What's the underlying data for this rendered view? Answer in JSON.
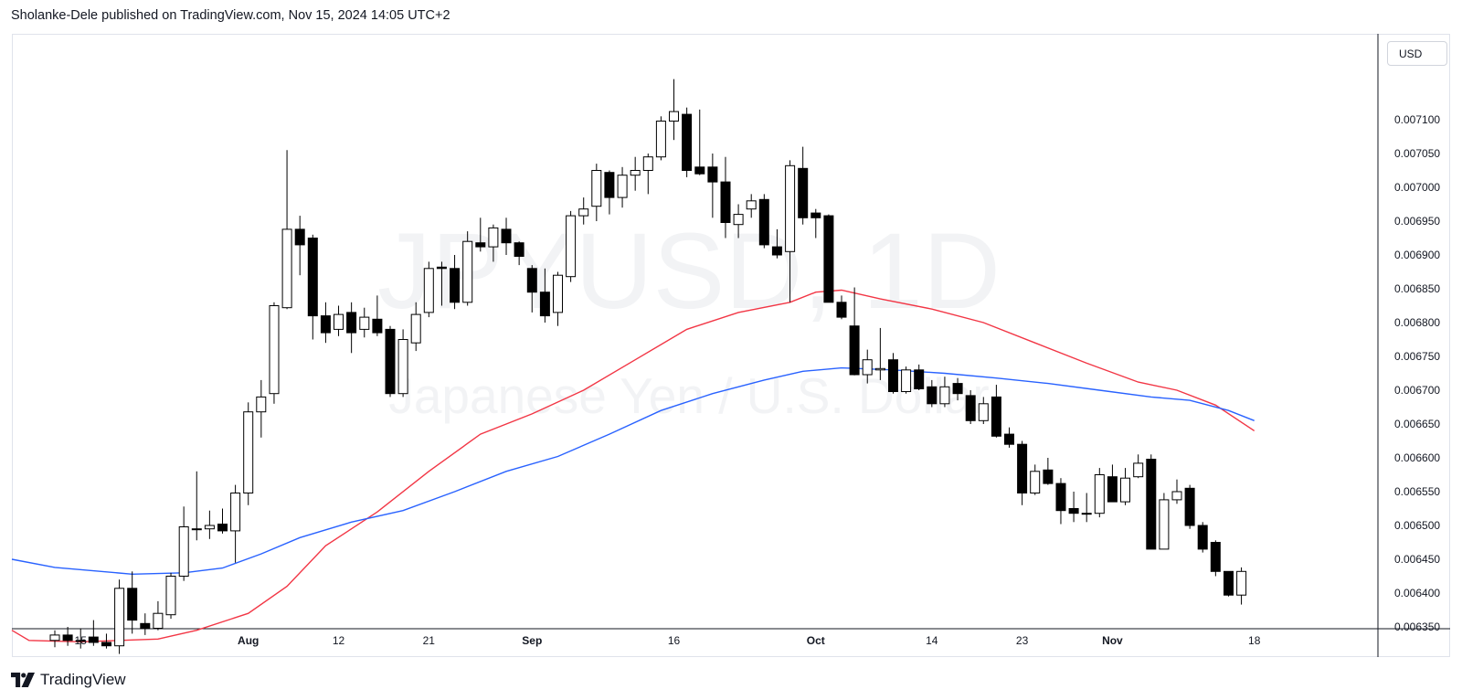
{
  "header": {
    "published_line": "Sholanke-Dele published on TradingView.com, Nov 15, 2024 14:05 UTC+2"
  },
  "price_scale": {
    "currency_button": "USD"
  },
  "watermark": {
    "symbol": "JPYUSD, 1D",
    "description": "Japanese Yen / U.S. Dollar"
  },
  "footer": {
    "brand": "TradingView"
  },
  "colors": {
    "up_candle_body": "#ffffff",
    "down_candle_body": "#000000",
    "candle_outline": "#000000",
    "ma_fast": "#f23645",
    "ma_slow": "#2962ff",
    "watermark": "#f2f3f5"
  },
  "chart_data": {
    "type": "candlestick",
    "symbol": "JPYUSD",
    "timeframe": "1D",
    "y_ticks": [
      "0.006350",
      "0.006400",
      "0.006450",
      "0.006500",
      "0.006550",
      "0.006600",
      "0.006650",
      "0.006700",
      "0.006750",
      "0.006800",
      "0.006850",
      "0.006900",
      "0.006950",
      "0.007000",
      "0.007050",
      "0.007100"
    ],
    "ylim": [
      0.00632,
      0.00714
    ],
    "x_ticks": [
      {
        "label": "15",
        "index": 2,
        "bold": false
      },
      {
        "label": "Aug",
        "index": 15,
        "bold": true
      },
      {
        "label": "12",
        "index": 22,
        "bold": false
      },
      {
        "label": "21",
        "index": 29,
        "bold": false
      },
      {
        "label": "Sep",
        "index": 37,
        "bold": true
      },
      {
        "label": "16",
        "index": 48,
        "bold": false
      },
      {
        "label": "Oct",
        "index": 59,
        "bold": true
      },
      {
        "label": "14",
        "index": 68,
        "bold": false
      },
      {
        "label": "23",
        "index": 75,
        "bold": false
      },
      {
        "label": "Nov",
        "index": 82,
        "bold": true
      },
      {
        "label": "18",
        "index": 93,
        "bold": false
      }
    ],
    "candles": [
      {
        "o": 0.00633,
        "h": 0.006345,
        "l": 0.00632,
        "c": 0.006338
      },
      {
        "o": 0.006338,
        "h": 0.00635,
        "l": 0.006322,
        "c": 0.00633
      },
      {
        "o": 0.00633,
        "h": 0.006348,
        "l": 0.006318,
        "c": 0.00633
      },
      {
        "o": 0.006335,
        "h": 0.00636,
        "l": 0.006322,
        "c": 0.006327
      },
      {
        "o": 0.006327,
        "h": 0.00634,
        "l": 0.006318,
        "c": 0.006322
      },
      {
        "o": 0.006322,
        "h": 0.00642,
        "l": 0.00631,
        "c": 0.006407
      },
      {
        "o": 0.006407,
        "h": 0.006432,
        "l": 0.00634,
        "c": 0.00636
      },
      {
        "o": 0.006355,
        "h": 0.00637,
        "l": 0.006338,
        "c": 0.006348
      },
      {
        "o": 0.006348,
        "h": 0.006388,
        "l": 0.006345,
        "c": 0.00637
      },
      {
        "o": 0.006368,
        "h": 0.00643,
        "l": 0.006362,
        "c": 0.006425
      },
      {
        "o": 0.006425,
        "h": 0.006528,
        "l": 0.006418,
        "c": 0.006498
      },
      {
        "o": 0.006495,
        "h": 0.00658,
        "l": 0.006478,
        "c": 0.006495
      },
      {
        "o": 0.006495,
        "h": 0.006522,
        "l": 0.00648,
        "c": 0.0065
      },
      {
        "o": 0.006502,
        "h": 0.006525,
        "l": 0.006488,
        "c": 0.006492
      },
      {
        "o": 0.006492,
        "h": 0.00656,
        "l": 0.006445,
        "c": 0.006548
      },
      {
        "o": 0.006548,
        "h": 0.006682,
        "l": 0.00653,
        "c": 0.006668
      },
      {
        "o": 0.006668,
        "h": 0.006715,
        "l": 0.00663,
        "c": 0.00669
      },
      {
        "o": 0.006695,
        "h": 0.00683,
        "l": 0.00668,
        "c": 0.006825
      },
      {
        "o": 0.006822,
        "h": 0.007055,
        "l": 0.00682,
        "c": 0.006938
      },
      {
        "o": 0.006938,
        "h": 0.006958,
        "l": 0.00687,
        "c": 0.006915
      },
      {
        "o": 0.006925,
        "h": 0.00693,
        "l": 0.006775,
        "c": 0.00681
      },
      {
        "o": 0.00681,
        "h": 0.00683,
        "l": 0.00677,
        "c": 0.006785
      },
      {
        "o": 0.00679,
        "h": 0.006825,
        "l": 0.00678,
        "c": 0.006812
      },
      {
        "o": 0.006815,
        "h": 0.00683,
        "l": 0.006755,
        "c": 0.006785
      },
      {
        "o": 0.00679,
        "h": 0.006822,
        "l": 0.006778,
        "c": 0.006808
      },
      {
        "o": 0.006805,
        "h": 0.00684,
        "l": 0.00678,
        "c": 0.006785
      },
      {
        "o": 0.00679,
        "h": 0.006795,
        "l": 0.00669,
        "c": 0.006695
      },
      {
        "o": 0.006695,
        "h": 0.00679,
        "l": 0.00669,
        "c": 0.006775
      },
      {
        "o": 0.00677,
        "h": 0.00683,
        "l": 0.006758,
        "c": 0.006812
      },
      {
        "o": 0.006815,
        "h": 0.00689,
        "l": 0.006808,
        "c": 0.00688
      },
      {
        "o": 0.006882,
        "h": 0.00689,
        "l": 0.006825,
        "c": 0.00688
      },
      {
        "o": 0.00688,
        "h": 0.0069,
        "l": 0.00682,
        "c": 0.00683
      },
      {
        "o": 0.00683,
        "h": 0.006935,
        "l": 0.006825,
        "c": 0.00692
      },
      {
        "o": 0.006918,
        "h": 0.006955,
        "l": 0.006905,
        "c": 0.006912
      },
      {
        "o": 0.006912,
        "h": 0.006945,
        "l": 0.00689,
        "c": 0.00694
      },
      {
        "o": 0.006938,
        "h": 0.006955,
        "l": 0.0069,
        "c": 0.006918
      },
      {
        "o": 0.006918,
        "h": 0.00692,
        "l": 0.006885,
        "c": 0.006898
      },
      {
        "o": 0.00688,
        "h": 0.006885,
        "l": 0.006815,
        "c": 0.006845
      },
      {
        "o": 0.006845,
        "h": 0.00688,
        "l": 0.0068,
        "c": 0.00681
      },
      {
        "o": 0.006815,
        "h": 0.006875,
        "l": 0.006795,
        "c": 0.00687
      },
      {
        "o": 0.006868,
        "h": 0.006965,
        "l": 0.00686,
        "c": 0.006958
      },
      {
        "o": 0.006958,
        "h": 0.006985,
        "l": 0.006945,
        "c": 0.006968
      },
      {
        "o": 0.006972,
        "h": 0.007035,
        "l": 0.00695,
        "c": 0.007025
      },
      {
        "o": 0.007022,
        "h": 0.007025,
        "l": 0.00696,
        "c": 0.006985
      },
      {
        "o": 0.006985,
        "h": 0.00703,
        "l": 0.00697,
        "c": 0.007018
      },
      {
        "o": 0.007018,
        "h": 0.007045,
        "l": 0.006995,
        "c": 0.007025
      },
      {
        "o": 0.007025,
        "h": 0.00705,
        "l": 0.00699,
        "c": 0.007045
      },
      {
        "o": 0.007045,
        "h": 0.007105,
        "l": 0.00704,
        "c": 0.007098
      },
      {
        "o": 0.007098,
        "h": 0.00716,
        "l": 0.00707,
        "c": 0.007112
      },
      {
        "o": 0.007108,
        "h": 0.007118,
        "l": 0.007015,
        "c": 0.007025
      },
      {
        "o": 0.00703,
        "h": 0.007115,
        "l": 0.007018,
        "c": 0.00702
      },
      {
        "o": 0.00703,
        "h": 0.00705,
        "l": 0.006955,
        "c": 0.007008
      },
      {
        "o": 0.007008,
        "h": 0.007045,
        "l": 0.006925,
        "c": 0.006948
      },
      {
        "o": 0.006945,
        "h": 0.006975,
        "l": 0.006925,
        "c": 0.00696
      },
      {
        "o": 0.006968,
        "h": 0.00699,
        "l": 0.006955,
        "c": 0.00698
      },
      {
        "o": 0.006982,
        "h": 0.00699,
        "l": 0.00691,
        "c": 0.006915
      },
      {
        "o": 0.006912,
        "h": 0.006938,
        "l": 0.006895,
        "c": 0.0069
      },
      {
        "o": 0.006905,
        "h": 0.00704,
        "l": 0.00683,
        "c": 0.007032
      },
      {
        "o": 0.007028,
        "h": 0.00706,
        "l": 0.006945,
        "c": 0.006955
      },
      {
        "o": 0.006962,
        "h": 0.006968,
        "l": 0.006925,
        "c": 0.006955
      },
      {
        "o": 0.006958,
        "h": 0.00696,
        "l": 0.00683,
        "c": 0.00683
      },
      {
        "o": 0.00683,
        "h": 0.00684,
        "l": 0.006805,
        "c": 0.006808
      },
      {
        "o": 0.006795,
        "h": 0.006852,
        "l": 0.006722,
        "c": 0.006723
      },
      {
        "o": 0.006723,
        "h": 0.00676,
        "l": 0.00671,
        "c": 0.006745
      },
      {
        "o": 0.00673,
        "h": 0.006792,
        "l": 0.006715,
        "c": 0.006732
      },
      {
        "o": 0.006745,
        "h": 0.006755,
        "l": 0.006695,
        "c": 0.006698
      },
      {
        "o": 0.006698,
        "h": 0.006735,
        "l": 0.006695,
        "c": 0.00673
      },
      {
        "o": 0.00673,
        "h": 0.006738,
        "l": 0.0067,
        "c": 0.006702
      },
      {
        "o": 0.006705,
        "h": 0.006715,
        "l": 0.006675,
        "c": 0.00668
      },
      {
        "o": 0.00668,
        "h": 0.00672,
        "l": 0.006675,
        "c": 0.006705
      },
      {
        "o": 0.00671,
        "h": 0.006718,
        "l": 0.006685,
        "c": 0.006695
      },
      {
        "o": 0.006692,
        "h": 0.0067,
        "l": 0.00665,
        "c": 0.006655
      },
      {
        "o": 0.006655,
        "h": 0.00669,
        "l": 0.00665,
        "c": 0.00668
      },
      {
        "o": 0.00669,
        "h": 0.006708,
        "l": 0.00663,
        "c": 0.006632
      },
      {
        "o": 0.006635,
        "h": 0.006645,
        "l": 0.006615,
        "c": 0.00662
      },
      {
        "o": 0.00662,
        "h": 0.006625,
        "l": 0.00653,
        "c": 0.006548
      },
      {
        "o": 0.006548,
        "h": 0.00659,
        "l": 0.006545,
        "c": 0.00658
      },
      {
        "o": 0.006582,
        "h": 0.0066,
        "l": 0.00656,
        "c": 0.006562
      },
      {
        "o": 0.006562,
        "h": 0.00657,
        "l": 0.006502,
        "c": 0.006522
      },
      {
        "o": 0.006525,
        "h": 0.00655,
        "l": 0.006505,
        "c": 0.006518
      },
      {
        "o": 0.006518,
        "h": 0.006548,
        "l": 0.006505,
        "c": 0.006518
      },
      {
        "o": 0.006518,
        "h": 0.006585,
        "l": 0.006512,
        "c": 0.006575
      },
      {
        "o": 0.006572,
        "h": 0.00659,
        "l": 0.006535,
        "c": 0.006535
      },
      {
        "o": 0.006535,
        "h": 0.006585,
        "l": 0.00653,
        "c": 0.00657
      },
      {
        "o": 0.006572,
        "h": 0.006605,
        "l": 0.00657,
        "c": 0.006592
      },
      {
        "o": 0.006598,
        "h": 0.006605,
        "l": 0.006465,
        "c": 0.006465
      },
      {
        "o": 0.006465,
        "h": 0.006548,
        "l": 0.006465,
        "c": 0.006538
      },
      {
        "o": 0.006538,
        "h": 0.006568,
        "l": 0.006532,
        "c": 0.00655
      },
      {
        "o": 0.006555,
        "h": 0.00656,
        "l": 0.006495,
        "c": 0.0065
      },
      {
        "o": 0.0065,
        "h": 0.006505,
        "l": 0.00646,
        "c": 0.006465
      },
      {
        "o": 0.006475,
        "h": 0.006478,
        "l": 0.006425,
        "c": 0.006432
      },
      {
        "o": 0.006432,
        "h": 0.006432,
        "l": 0.006395,
        "c": 0.006397
      },
      {
        "o": 0.006397,
        "h": 0.006438,
        "l": 0.006383,
        "c": 0.006432
      }
    ],
    "series": [
      {
        "indicator": "moving-average-fast",
        "color": "#f23645",
        "points": [
          [
            -5,
            0.006345
          ],
          [
            -2,
            0.00633
          ],
          [
            2,
            0.006328
          ],
          [
            8,
            0.006332
          ],
          [
            11,
            0.006345
          ],
          [
            15,
            0.00637
          ],
          [
            18,
            0.00641
          ],
          [
            21,
            0.00647
          ],
          [
            25,
            0.00652
          ],
          [
            29,
            0.00658
          ],
          [
            33,
            0.006635
          ],
          [
            37,
            0.006665
          ],
          [
            41,
            0.0067
          ],
          [
            45,
            0.006745
          ],
          [
            49,
            0.00679
          ],
          [
            53,
            0.006815
          ],
          [
            57,
            0.00683
          ],
          [
            59,
            0.006845
          ],
          [
            61,
            0.006848
          ],
          [
            64,
            0.006835
          ],
          [
            68,
            0.00682
          ],
          [
            72,
            0.0068
          ],
          [
            76,
            0.00677
          ],
          [
            80,
            0.00674
          ],
          [
            84,
            0.006712
          ],
          [
            87,
            0.0067
          ],
          [
            90,
            0.006678
          ],
          [
            93,
            0.00664
          ]
        ]
      },
      {
        "indicator": "moving-average-slow",
        "color": "#2962ff",
        "points": [
          [
            -5,
            0.00645
          ],
          [
            0,
            0.006438
          ],
          [
            6,
            0.006428
          ],
          [
            10,
            0.00643
          ],
          [
            13,
            0.006437
          ],
          [
            16,
            0.006458
          ],
          [
            19,
            0.006482
          ],
          [
            23,
            0.006505
          ],
          [
            27,
            0.006522
          ],
          [
            31,
            0.00655
          ],
          [
            35,
            0.00658
          ],
          [
            39,
            0.006602
          ],
          [
            43,
            0.006635
          ],
          [
            47,
            0.00667
          ],
          [
            51,
            0.006695
          ],
          [
            55,
            0.006715
          ],
          [
            58,
            0.006728
          ],
          [
            61,
            0.006733
          ],
          [
            65,
            0.00673
          ],
          [
            69,
            0.006725
          ],
          [
            73,
            0.006718
          ],
          [
            77,
            0.00671
          ],
          [
            81,
            0.0067
          ],
          [
            85,
            0.00669
          ],
          [
            88,
            0.006685
          ],
          [
            91,
            0.00667
          ],
          [
            93,
            0.006655
          ]
        ]
      }
    ]
  }
}
